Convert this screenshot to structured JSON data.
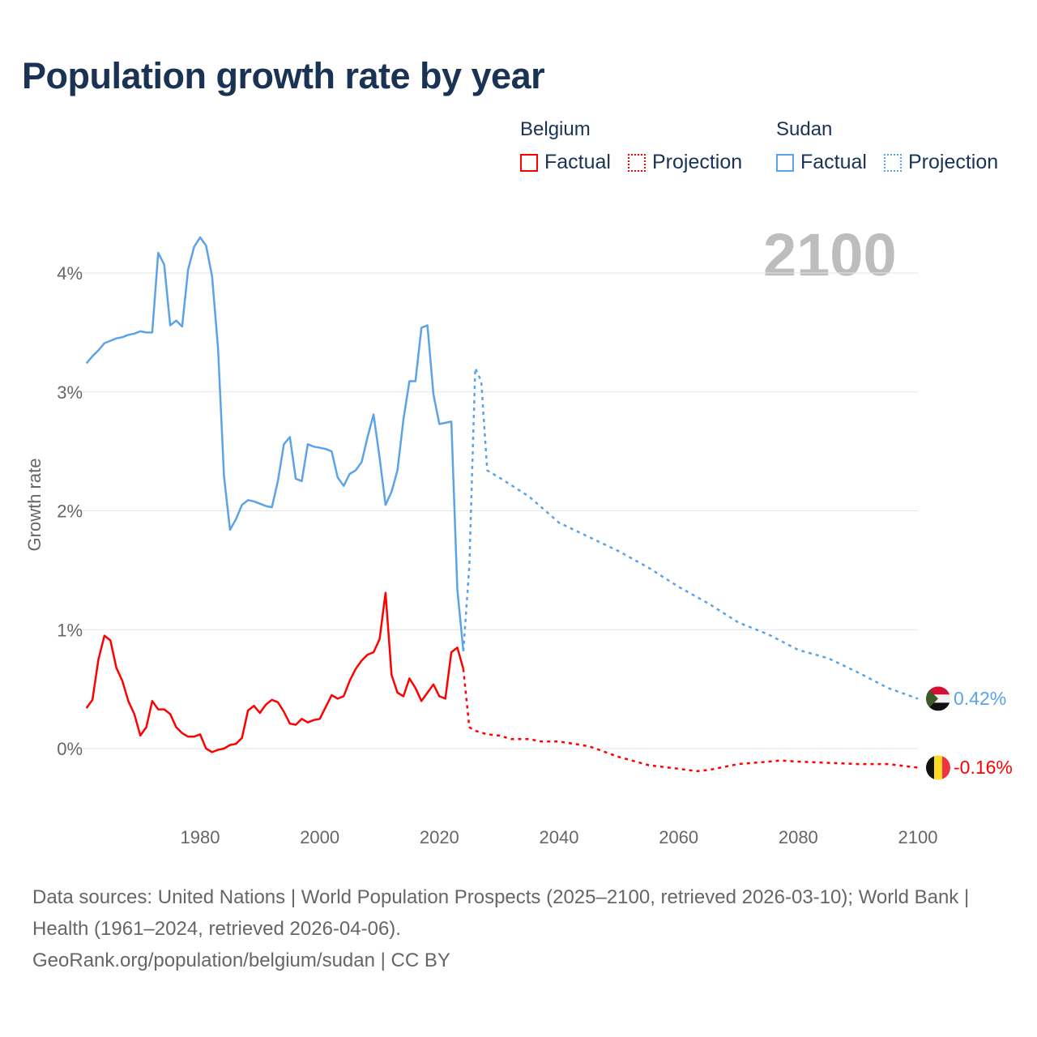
{
  "chart_data": {
    "type": "line",
    "title": "Population growth rate by year",
    "xlabel": "",
    "ylabel": "Growth rate",
    "xlim": [
      1961,
      2100
    ],
    "ylim": [
      -0.6,
      4.6
    ],
    "x_ticks": [
      "1980",
      "2000",
      "2020",
      "2040",
      "2060",
      "2080",
      "2100"
    ],
    "y_ticks": [
      "0%",
      "1%",
      "2%",
      "3%",
      "4%"
    ],
    "y_tick_values": [
      0,
      1,
      2,
      3,
      4
    ],
    "x_tick_values": [
      1980,
      2000,
      2020,
      2040,
      2060,
      2080,
      2100
    ],
    "grid": true,
    "current_year": "2100",
    "legend": {
      "placement": "top-right",
      "groups": [
        {
          "name": "Belgium",
          "color": "#ff0000",
          "items": [
            "Factual",
            "Projection"
          ]
        },
        {
          "name": "Sudan",
          "color": "#5ba3e8",
          "items": [
            "Factual",
            "Projection"
          ]
        }
      ]
    },
    "series": [
      {
        "name": "Sudan Factual",
        "color": "#5ba3e8",
        "style": "solid",
        "x": [
          1961,
          1962,
          1963,
          1964,
          1965,
          1966,
          1967,
          1968,
          1969,
          1970,
          1971,
          1972,
          1973,
          1974,
          1975,
          1976,
          1977,
          1978,
          1979,
          1980,
          1981,
          1982,
          1983,
          1984,
          1985,
          1986,
          1987,
          1988,
          1989,
          1990,
          1991,
          1992,
          1993,
          1994,
          1995,
          1996,
          1997,
          1998,
          1999,
          2000,
          2001,
          2002,
          2003,
          2004,
          2005,
          2006,
          2007,
          2008,
          2009,
          2010,
          2011,
          2012,
          2013,
          2014,
          2015,
          2016,
          2017,
          2018,
          2019,
          2020,
          2021,
          2022,
          2023,
          2024
        ],
        "values": [
          3.24,
          3.3,
          3.35,
          3.41,
          3.43,
          3.45,
          3.46,
          3.48,
          3.49,
          3.51,
          3.5,
          3.5,
          4.17,
          4.07,
          3.56,
          3.6,
          3.55,
          4.03,
          4.22,
          4.3,
          4.23,
          3.97,
          3.37,
          2.29,
          1.84,
          1.93,
          2.05,
          2.09,
          2.08,
          2.06,
          2.04,
          2.03,
          2.25,
          2.56,
          2.62,
          2.27,
          2.25,
          2.56,
          2.54,
          2.53,
          2.52,
          2.5,
          2.28,
          2.21,
          2.31,
          2.34,
          2.41,
          2.62,
          2.81,
          2.45,
          2.05,
          2.16,
          2.34,
          2.77,
          3.09,
          3.09,
          3.54,
          3.56,
          2.98,
          2.73,
          2.74,
          2.75,
          1.34,
          0.82
        ]
      },
      {
        "name": "Sudan Projection",
        "color": "#5ba3e8",
        "style": "dotted",
        "x": [
          2024,
          2025,
          2026,
          2027,
          2028,
          2030,
          2035,
          2040,
          2045,
          2050,
          2055,
          2060,
          2065,
          2070,
          2075,
          2080,
          2085,
          2090,
          2095,
          2100
        ],
        "values": [
          0.82,
          1.53,
          3.2,
          3.09,
          2.34,
          2.28,
          2.12,
          1.9,
          1.78,
          1.66,
          1.52,
          1.36,
          1.22,
          1.06,
          0.96,
          0.83,
          0.76,
          0.64,
          0.51,
          0.42
        ]
      },
      {
        "name": "Belgium Factual",
        "color": "#ff0000",
        "style": "solid",
        "x": [
          1961,
          1962,
          1963,
          1964,
          1965,
          1966,
          1967,
          1968,
          1969,
          1970,
          1971,
          1972,
          1973,
          1974,
          1975,
          1976,
          1977,
          1978,
          1979,
          1980,
          1981,
          1982,
          1983,
          1984,
          1985,
          1986,
          1987,
          1988,
          1989,
          1990,
          1991,
          1992,
          1993,
          1994,
          1995,
          1996,
          1997,
          1998,
          1999,
          2000,
          2001,
          2002,
          2003,
          2004,
          2005,
          2006,
          2007,
          2008,
          2009,
          2010,
          2011,
          2012,
          2013,
          2014,
          2015,
          2016,
          2017,
          2018,
          2019,
          2020,
          2021,
          2022,
          2023,
          2024
        ],
        "values": [
          0.34,
          0.41,
          0.75,
          0.95,
          0.91,
          0.68,
          0.57,
          0.4,
          0.29,
          0.11,
          0.18,
          0.4,
          0.33,
          0.33,
          0.29,
          0.18,
          0.13,
          0.1,
          0.1,
          0.12,
          0.0,
          -0.03,
          -0.01,
          0.0,
          0.03,
          0.04,
          0.09,
          0.32,
          0.36,
          0.3,
          0.37,
          0.41,
          0.39,
          0.31,
          0.21,
          0.2,
          0.25,
          0.22,
          0.24,
          0.25,
          0.35,
          0.45,
          0.42,
          0.44,
          0.57,
          0.67,
          0.74,
          0.79,
          0.81,
          0.92,
          1.31,
          0.62,
          0.47,
          0.44,
          0.59,
          0.51,
          0.4,
          0.47,
          0.54,
          0.44,
          0.42,
          0.81,
          0.85,
          0.67
        ]
      },
      {
        "name": "Belgium Projection",
        "color": "#ff0000",
        "style": "dotted",
        "x": [
          2024,
          2025,
          2026,
          2028,
          2030,
          2032,
          2035,
          2037,
          2040,
          2045,
          2050,
          2055,
          2060,
          2063,
          2065,
          2070,
          2075,
          2077,
          2080,
          2085,
          2090,
          2095,
          2100
        ],
        "values": [
          0.67,
          0.18,
          0.15,
          0.12,
          0.11,
          0.08,
          0.08,
          0.06,
          0.06,
          0.02,
          -0.07,
          -0.14,
          -0.17,
          -0.19,
          -0.18,
          -0.13,
          -0.11,
          -0.1,
          -0.11,
          -0.12,
          -0.13,
          -0.13,
          -0.16
        ]
      }
    ],
    "end_labels": [
      {
        "series": "Sudan",
        "text": "0.42%",
        "color": "#5ba3e8"
      },
      {
        "series": "Belgium",
        "text": "-0.16%",
        "color": "#ff0000"
      }
    ]
  },
  "footer": {
    "sources": "Data sources: United Nations | World Population Prospects (2025–2100, retrieved 2026-03-10); World Bank | Health (1961–2024, retrieved 2026-04-06).",
    "url": "GeoRank.org/population/belgium/sudan | CC BY"
  }
}
